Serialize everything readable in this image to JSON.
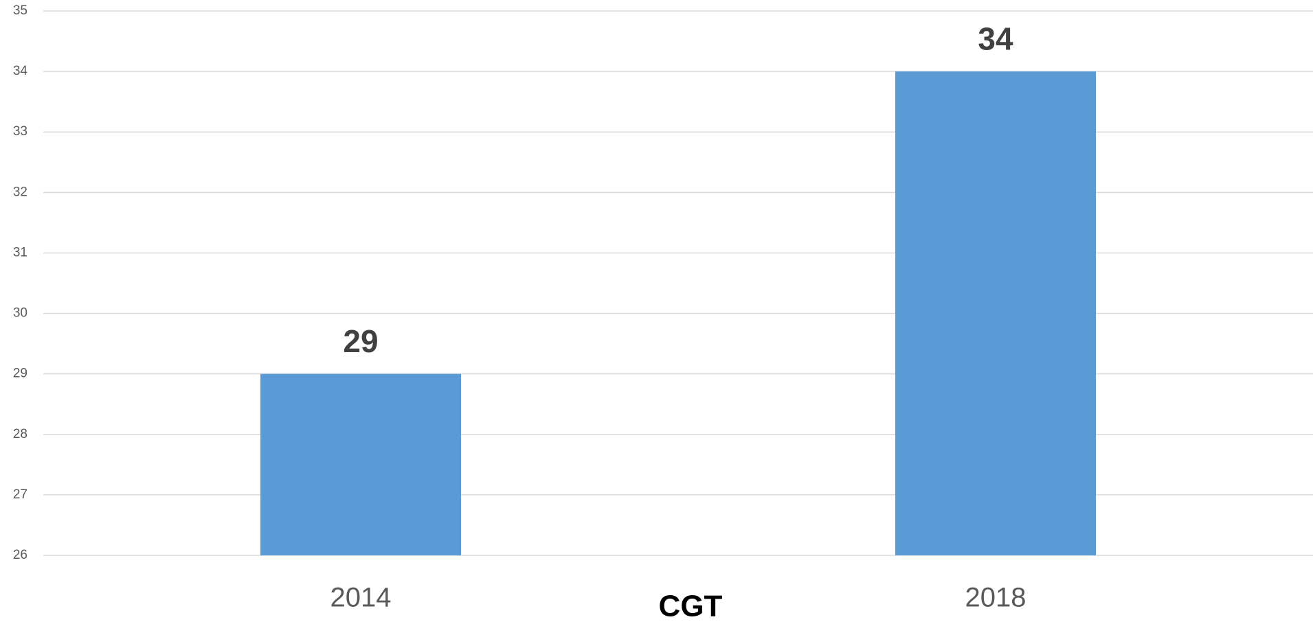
{
  "chart_data": {
    "type": "bar",
    "title": "CGT",
    "categories": [
      "2014",
      "2018"
    ],
    "values": [
      29,
      34
    ],
    "color": "#5b9bd5",
    "ylim": [
      26,
      35
    ],
    "yticks": [
      26,
      27,
      28,
      29,
      30,
      31,
      32,
      33,
      34,
      35
    ],
    "grid": true
  }
}
